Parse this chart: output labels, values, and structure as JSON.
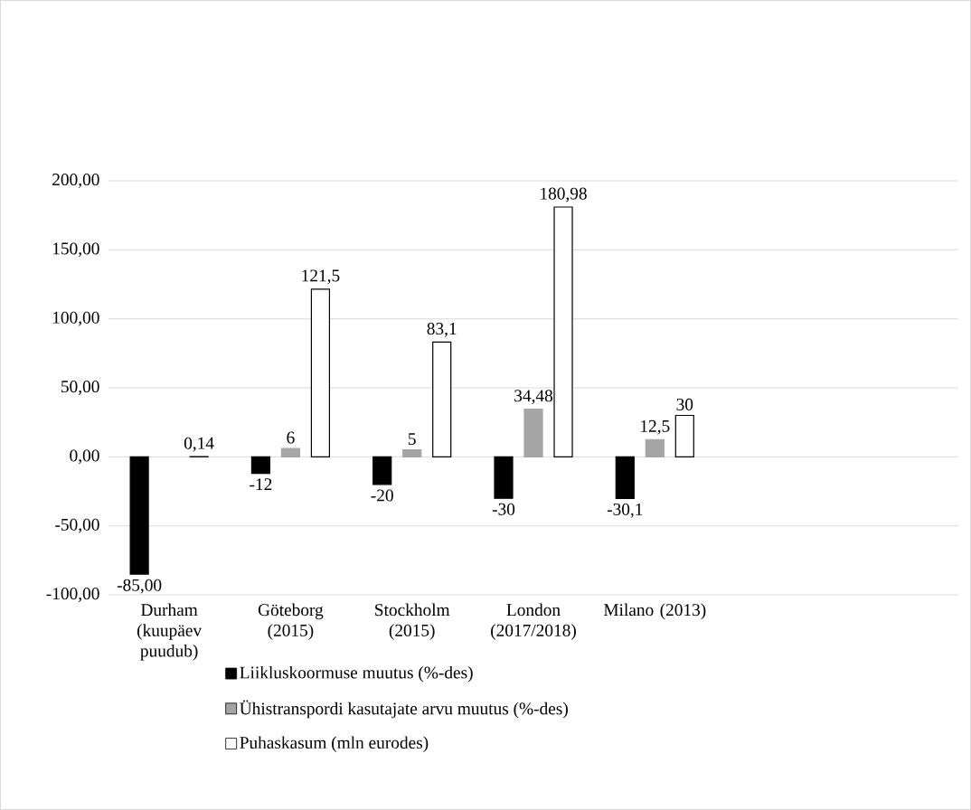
{
  "chart_data": {
    "type": "bar",
    "categories": [
      "Durham (kuupäev puudub)",
      "Göteborg (2015)",
      "Stockholm (2015)",
      "London (2017/2018)",
      "Milano (2013)",
      null,
      null
    ],
    "series": [
      {
        "name": "Liikluskoormuse muutus (%-des)",
        "color": "#000000",
        "values": [
          -85,
          -12,
          -20,
          -30,
          -30.1,
          null,
          null
        ],
        "value_labels": [
          "-85,00",
          "-12",
          "-20",
          "-30",
          "-30,1",
          null,
          null
        ]
      },
      {
        "name": "Ühistranspordi kasutajate arvu muutus (%-des)",
        "color": "#a5a5a5",
        "values": [
          null,
          6,
          5,
          34.48,
          12.5,
          null,
          null
        ],
        "value_labels": [
          null,
          "6",
          "5",
          "34,48",
          "12,5",
          null,
          null
        ]
      },
      {
        "name": "Puhaskasum (mln eurodes)",
        "color": "#ffffff",
        "values": [
          0.14,
          121.5,
          83.1,
          180.98,
          30,
          null,
          null
        ],
        "value_labels": [
          "0,14",
          "121,5",
          "83,1",
          "180,98",
          "30",
          null,
          null
        ]
      }
    ],
    "ylim": [
      -100,
      200
    ],
    "yticks": [
      {
        "value": -100,
        "label": "-100,00"
      },
      {
        "value": -50,
        "label": "-50,00"
      },
      {
        "value": 0,
        "label": "0,00"
      },
      {
        "value": 50,
        "label": "50,00"
      },
      {
        "value": 100,
        "label": "100,00"
      },
      {
        "value": 150,
        "label": "150,00"
      },
      {
        "value": 200,
        "label": "200,00"
      }
    ],
    "grid": "y",
    "legend": "bottom"
  }
}
